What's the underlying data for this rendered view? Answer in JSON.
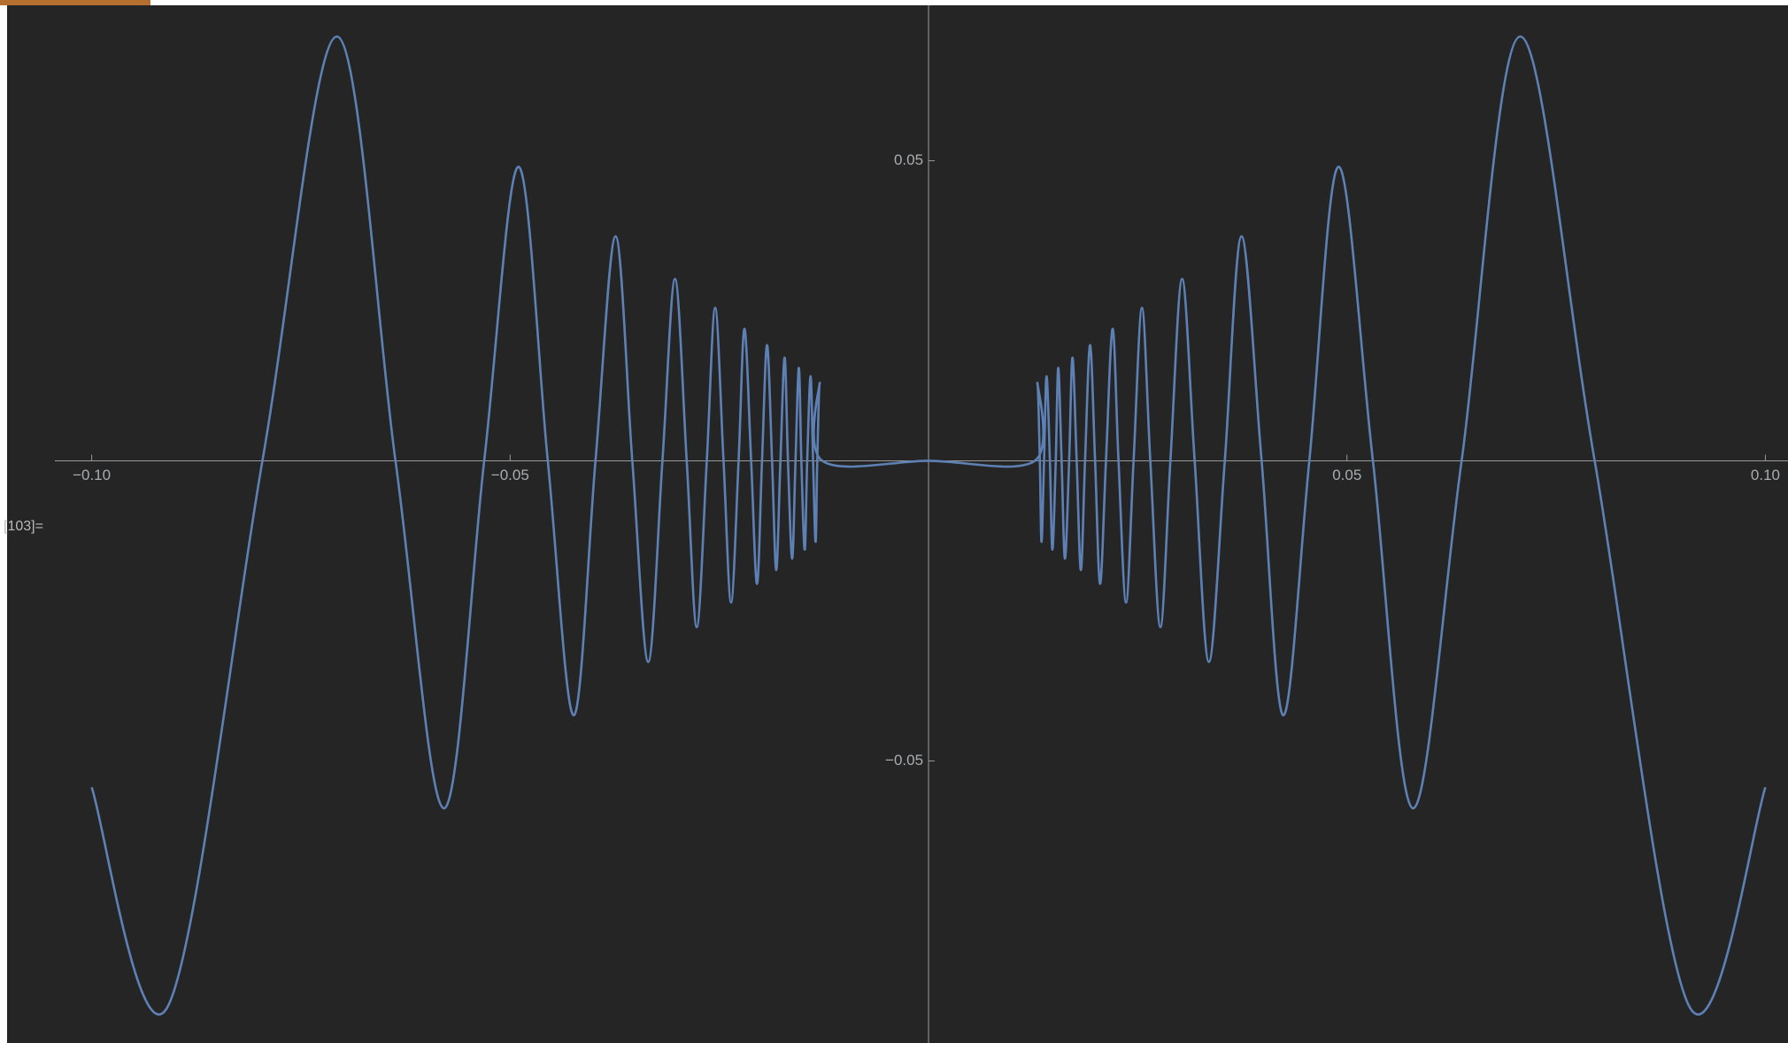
{
  "ui": {
    "cell_label": "[103]="
  },
  "chart_data": {
    "type": "line",
    "x": [
      -0.1,
      -0.0909,
      -0.0796,
      -0.0707,
      -0.0637,
      -0.0579,
      -0.0531,
      -0.049,
      -0.0455,
      -0.0424,
      -0.0398,
      -0.0374,
      -0.0354,
      -0.0335,
      -0.0318,
      -0.0303,
      -0.0289,
      -0.0277,
      -0.0265,
      -0.0255,
      -0.0245,
      -0.0236,
      -0.0227,
      -0.022,
      -0.0212,
      -0.0205,
      -0.0199,
      -0.0193,
      -0.0187,
      -0.0182,
      -0.0177,
      -0.0172,
      -0.0168,
      -0.0163,
      -0.0159,
      -0.0155,
      -0.0152,
      -0.0148,
      -0.0145,
      -0.0141,
      -0.0138,
      -0.0135,
      -0.0133,
      -0.013,
      -0.0127,
      0,
      0.0127,
      0.013,
      0.0133,
      0.0135,
      0.0138,
      0.0141,
      0.0145,
      0.0148,
      0.0152,
      0.0155,
      0.0159,
      0.0163,
      0.0168,
      0.0172,
      0.0177,
      0.0182,
      0.0187,
      0.0193,
      0.0199,
      0.0205,
      0.0212,
      0.022,
      0.0227,
      0.0236,
      0.0245,
      0.0255,
      0.0265,
      0.0277,
      0.0289,
      0.0303,
      0.0318,
      0.0335,
      0.0354,
      0.0374,
      0.0398,
      0.0424,
      0.0455,
      0.049,
      0.0531,
      0.0579,
      0.0637,
      0.0707,
      0.0796,
      0.0909,
      0.1
    ],
    "series": [
      {
        "color": "#5e81b5",
        "values": [
          -0.0544,
          -0.0909,
          0,
          0.0707,
          0,
          -0.0579,
          0,
          0.049,
          0,
          -0.0424,
          0,
          0.0374,
          0,
          -0.0335,
          0,
          0.0303,
          0,
          -0.0277,
          0,
          0.0255,
          0,
          -0.0236,
          0,
          0.022,
          0,
          -0.0205,
          0,
          0.0193,
          0,
          -0.0182,
          0,
          0.0172,
          0,
          -0.0163,
          0,
          0.0155,
          0,
          -0.0148,
          0,
          0.0141,
          0,
          -0.0135,
          0,
          0.013,
          0,
          0,
          0,
          0.013,
          0,
          -0.0135,
          0,
          0.0141,
          0,
          -0.0148,
          0,
          0.0155,
          0,
          -0.0163,
          0,
          0.0172,
          0,
          -0.0182,
          0,
          0.0193,
          0,
          -0.0205,
          0,
          0.022,
          0,
          -0.0236,
          0,
          0.0255,
          0,
          -0.0277,
          0,
          0.0303,
          0,
          -0.0335,
          0,
          0.0374,
          0,
          -0.0424,
          0,
          0.049,
          0,
          -0.0579,
          0,
          0.0707,
          0,
          -0.0909,
          -0.0544
        ]
      }
    ],
    "xlim": [
      -0.1044,
      0.1027
    ],
    "ylim": [
      -0.097,
      0.0759
    ],
    "xticks": [
      {
        "value": -0.1,
        "label": "−0.10"
      },
      {
        "value": -0.05,
        "label": "−0.05"
      },
      {
        "value": 0.05,
        "label": "0.05"
      },
      {
        "value": 0.1,
        "label": "0.10"
      }
    ],
    "yticks": [
      {
        "value": -0.05,
        "label": "−0.05"
      },
      0.05
    ]
  }
}
